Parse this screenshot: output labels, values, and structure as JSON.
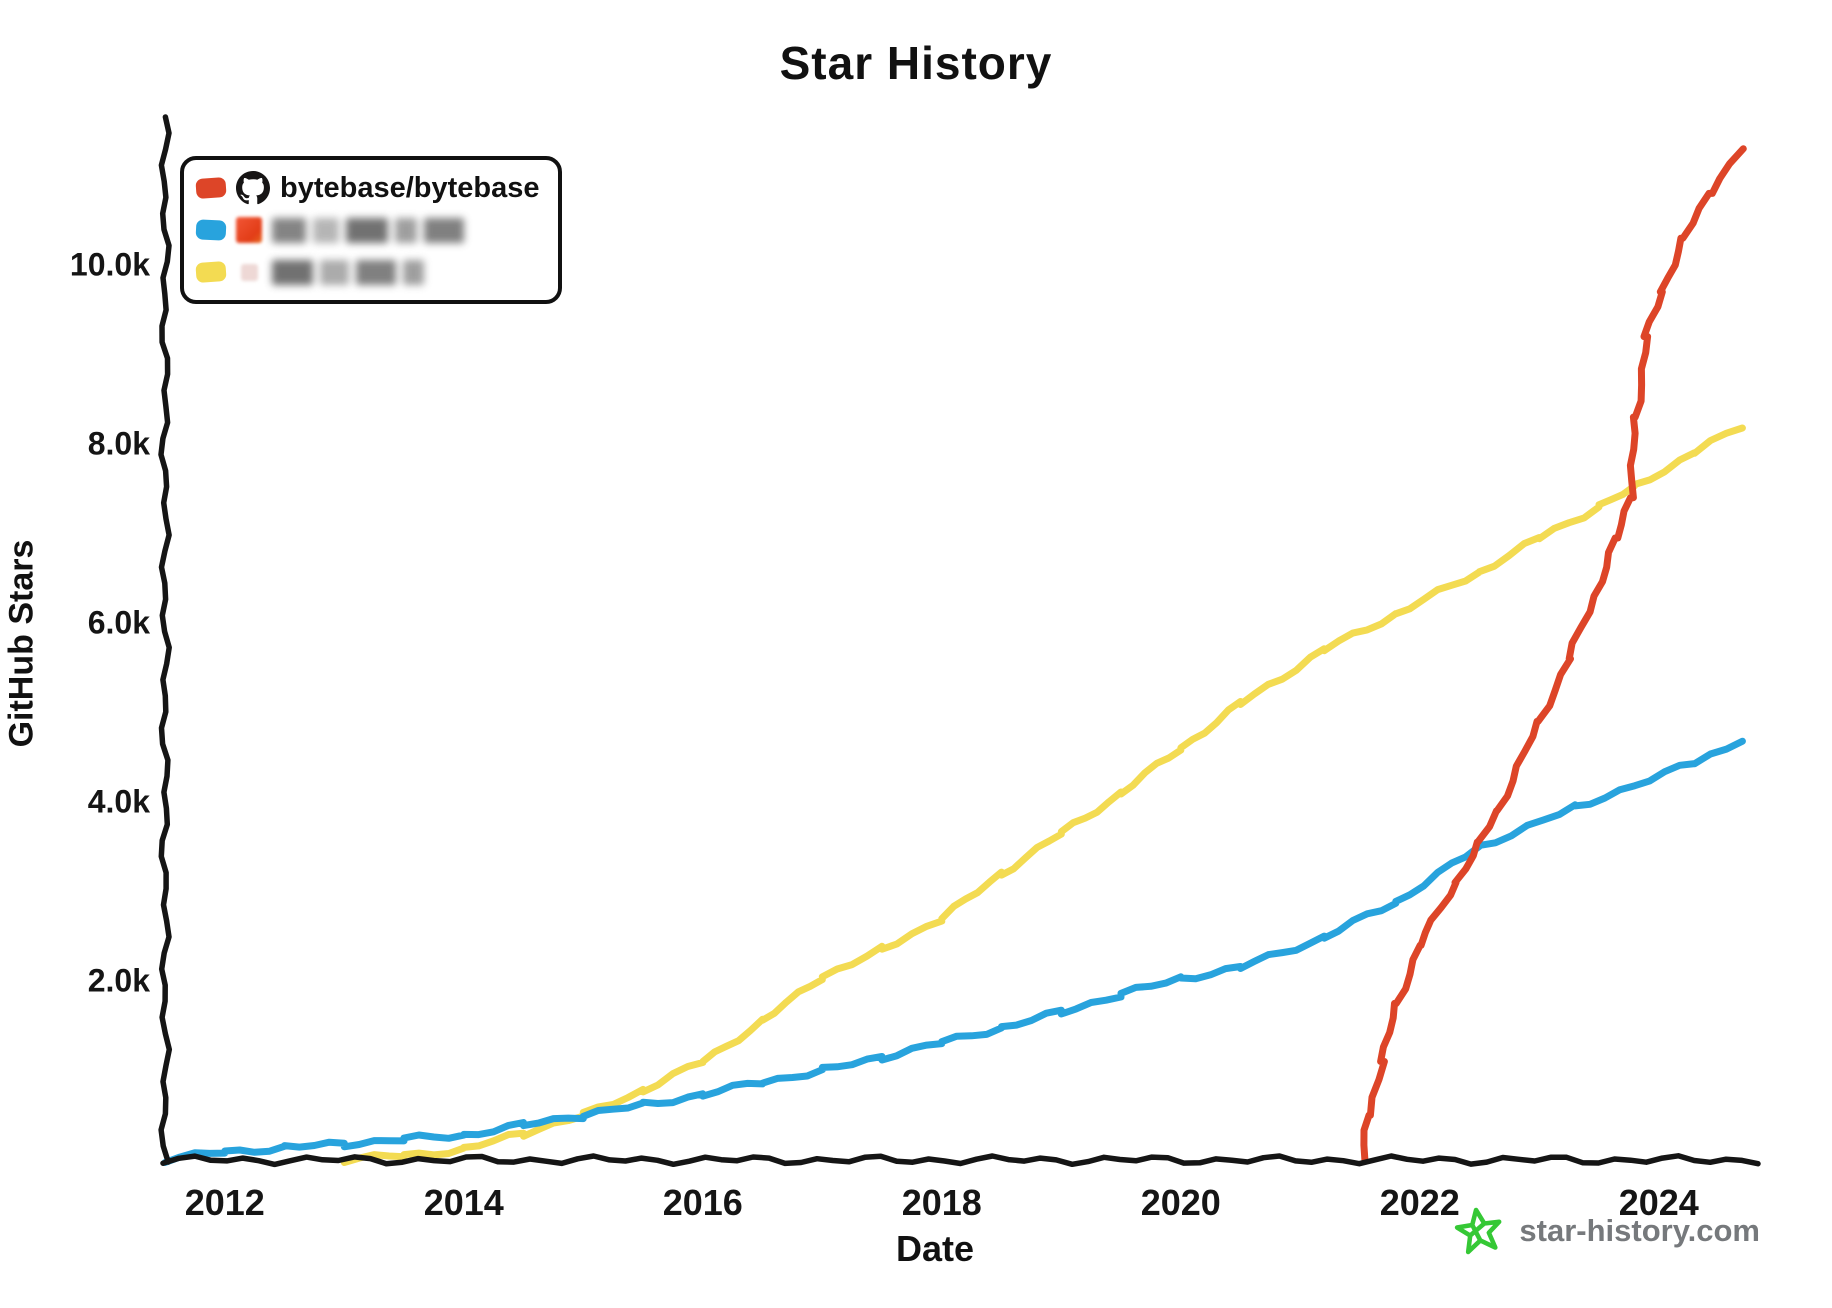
{
  "title": "Star History",
  "axes": {
    "y_label": "GitHub Stars",
    "x_label": "Date"
  },
  "legend": {
    "entries": [
      {
        "label": "bytebase/bytebase",
        "swatch_color": "#dd4528",
        "icon": "github-octocat",
        "redacted": false
      },
      {
        "label": "",
        "swatch_color": "#28a3dd",
        "icon": "blurred-avatar-orange",
        "redacted": true
      },
      {
        "label": "",
        "swatch_color": "#f3db52",
        "icon": "blurred-avatar-pink",
        "redacted": true
      }
    ]
  },
  "watermark": {
    "text": "star-history.com",
    "icon": "green-star-doodle",
    "text_color": "#76797c",
    "icon_color": "#35c835"
  },
  "colors": {
    "axis": "#151515",
    "text": "#111111",
    "background": "#ffffff"
  },
  "chart_data": {
    "type": "line",
    "title": "Star History",
    "xlabel": "Date",
    "ylabel": "GitHub Stars",
    "style": "hand-drawn (xkcd-like)",
    "grid": false,
    "legend_position": "top-left",
    "xlim": [
      2011.5,
      2024.83
    ],
    "ylim": [
      0,
      11650
    ],
    "x_ticks": [
      {
        "value": 2012,
        "label": "2012"
      },
      {
        "value": 2014,
        "label": "2014"
      },
      {
        "value": 2016,
        "label": "2016"
      },
      {
        "value": 2018,
        "label": "2018"
      },
      {
        "value": 2020,
        "label": "2020"
      },
      {
        "value": 2022,
        "label": "2022"
      },
      {
        "value": 2024,
        "label": "2024"
      }
    ],
    "y_ticks": [
      {
        "value": 2000,
        "label": "2.0k"
      },
      {
        "value": 4000,
        "label": "4.0k"
      },
      {
        "value": 6000,
        "label": "6.0k"
      },
      {
        "value": 8000,
        "label": "8.0k"
      },
      {
        "value": 10000,
        "label": "10.0k"
      }
    ],
    "series": [
      {
        "name": "(blurred)",
        "color": "#f3db52",
        "points": [
          [
            2013.0,
            0
          ],
          [
            2013.5,
            50
          ],
          [
            2014.0,
            120
          ],
          [
            2014.5,
            300
          ],
          [
            2015.0,
            500
          ],
          [
            2015.5,
            780
          ],
          [
            2016.0,
            1100
          ],
          [
            2016.5,
            1550
          ],
          [
            2017.0,
            2050
          ],
          [
            2017.5,
            2350
          ],
          [
            2018.0,
            2700
          ],
          [
            2018.5,
            3200
          ],
          [
            2019.0,
            3650
          ],
          [
            2019.5,
            4100
          ],
          [
            2020.0,
            4600
          ],
          [
            2020.5,
            5100
          ],
          [
            2021.2,
            5700
          ],
          [
            2021.8,
            6100
          ],
          [
            2022.5,
            6570
          ],
          [
            2023.0,
            6950
          ],
          [
            2023.5,
            7300
          ],
          [
            2023.8,
            7520
          ],
          [
            2024.3,
            7910
          ],
          [
            2024.7,
            8200
          ]
        ]
      },
      {
        "name": "(blurred)",
        "color": "#28a3dd",
        "points": [
          [
            2011.5,
            0
          ],
          [
            2012.0,
            90
          ],
          [
            2012.5,
            140
          ],
          [
            2013.0,
            180
          ],
          [
            2013.5,
            230
          ],
          [
            2014.0,
            280
          ],
          [
            2014.5,
            390
          ],
          [
            2015.0,
            500
          ],
          [
            2015.5,
            620
          ],
          [
            2016.0,
            730
          ],
          [
            2016.5,
            870
          ],
          [
            2017.0,
            1000
          ],
          [
            2017.5,
            1150
          ],
          [
            2018.0,
            1310
          ],
          [
            2018.5,
            1480
          ],
          [
            2019.0,
            1650
          ],
          [
            2019.5,
            1850
          ],
          [
            2020.0,
            2030
          ],
          [
            2020.5,
            2150
          ],
          [
            2021.2,
            2490
          ],
          [
            2021.8,
            2880
          ],
          [
            2022.5,
            3500
          ],
          [
            2023.3,
            3940
          ],
          [
            2024.3,
            4440
          ],
          [
            2024.7,
            4700
          ]
        ]
      },
      {
        "name": "bytebase/bytebase",
        "color": "#dd4528",
        "points": [
          [
            2021.52,
            0
          ],
          [
            2021.58,
            500
          ],
          [
            2021.68,
            1100
          ],
          [
            2021.81,
            1750
          ],
          [
            2022.0,
            2400
          ],
          [
            2022.3,
            3100
          ],
          [
            2022.5,
            3550
          ],
          [
            2022.65,
            3900
          ],
          [
            2023.0,
            4900
          ],
          [
            2023.25,
            5600
          ],
          [
            2023.46,
            6300
          ],
          [
            2023.65,
            6950
          ],
          [
            2023.76,
            7400
          ],
          [
            2023.81,
            8300
          ],
          [
            2023.9,
            9200
          ],
          [
            2024.02,
            9700
          ],
          [
            2024.21,
            10300
          ],
          [
            2024.42,
            10800
          ],
          [
            2024.7,
            11300
          ]
        ]
      }
    ]
  }
}
